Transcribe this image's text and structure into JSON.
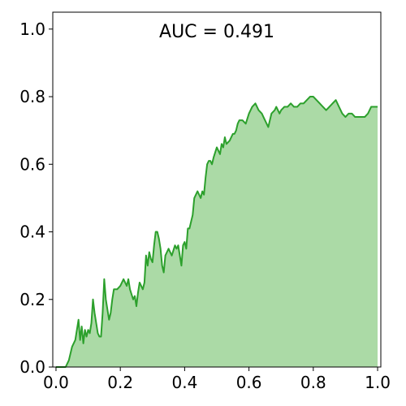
{
  "chart_data": {
    "type": "area",
    "title": "",
    "xlabel": "",
    "ylabel": "",
    "xlim": [
      -0.01,
      1.01
    ],
    "ylim": [
      0.0,
      1.05
    ],
    "grid": false,
    "line_color": "#2ca02c",
    "fill_color": "#abdaa6",
    "annotation": "AUC = 0.491",
    "x_ticks": [
      0.0,
      0.2,
      0.4,
      0.6,
      0.8,
      1.0
    ],
    "x_tick_labels": [
      "0.0",
      "0.2",
      "0.4",
      "0.6",
      "0.8",
      "1.0"
    ],
    "y_ticks": [
      0.0,
      0.2,
      0.4,
      0.6,
      0.8,
      1.0
    ],
    "y_tick_labels": [
      "0.0",
      "0.2",
      "0.4",
      "0.6",
      "0.8",
      "1.0"
    ],
    "x": [
      0.0,
      0.03,
      0.04,
      0.05,
      0.06,
      0.07,
      0.075,
      0.08,
      0.085,
      0.09,
      0.095,
      0.1,
      0.105,
      0.11,
      0.115,
      0.12,
      0.125,
      0.13,
      0.135,
      0.14,
      0.145,
      0.15,
      0.155,
      0.16,
      0.165,
      0.17,
      0.175,
      0.18,
      0.19,
      0.2,
      0.21,
      0.215,
      0.22,
      0.225,
      0.23,
      0.24,
      0.245,
      0.25,
      0.255,
      0.26,
      0.27,
      0.275,
      0.28,
      0.285,
      0.29,
      0.295,
      0.3,
      0.305,
      0.31,
      0.315,
      0.32,
      0.325,
      0.33,
      0.335,
      0.34,
      0.345,
      0.35,
      0.36,
      0.37,
      0.375,
      0.38,
      0.385,
      0.39,
      0.395,
      0.4,
      0.405,
      0.41,
      0.415,
      0.42,
      0.425,
      0.43,
      0.44,
      0.45,
      0.455,
      0.46,
      0.465,
      0.47,
      0.475,
      0.48,
      0.485,
      0.49,
      0.5,
      0.505,
      0.51,
      0.515,
      0.52,
      0.525,
      0.53,
      0.54,
      0.545,
      0.55,
      0.555,
      0.56,
      0.565,
      0.57,
      0.58,
      0.59,
      0.6,
      0.61,
      0.62,
      0.63,
      0.64,
      0.645,
      0.65,
      0.66,
      0.67,
      0.68,
      0.685,
      0.69,
      0.695,
      0.7,
      0.71,
      0.72,
      0.73,
      0.74,
      0.75,
      0.76,
      0.77,
      0.78,
      0.79,
      0.8,
      0.81,
      0.82,
      0.83,
      0.84,
      0.85,
      0.86,
      0.87,
      0.88,
      0.89,
      0.9,
      0.91,
      0.92,
      0.93,
      0.94,
      0.95,
      0.96,
      0.97,
      0.98,
      0.99,
      1.0
    ],
    "y": [
      0.0,
      0.0,
      0.02,
      0.06,
      0.08,
      0.14,
      0.08,
      0.12,
      0.07,
      0.11,
      0.09,
      0.11,
      0.1,
      0.13,
      0.2,
      0.16,
      0.13,
      0.1,
      0.09,
      0.09,
      0.16,
      0.26,
      0.2,
      0.17,
      0.14,
      0.16,
      0.2,
      0.23,
      0.23,
      0.24,
      0.26,
      0.25,
      0.24,
      0.26,
      0.23,
      0.2,
      0.21,
      0.18,
      0.22,
      0.25,
      0.23,
      0.25,
      0.33,
      0.3,
      0.34,
      0.32,
      0.31,
      0.36,
      0.4,
      0.4,
      0.38,
      0.35,
      0.3,
      0.28,
      0.33,
      0.34,
      0.35,
      0.33,
      0.36,
      0.35,
      0.36,
      0.33,
      0.3,
      0.36,
      0.37,
      0.35,
      0.41,
      0.41,
      0.43,
      0.45,
      0.5,
      0.52,
      0.5,
      0.52,
      0.51,
      0.56,
      0.6,
      0.61,
      0.61,
      0.6,
      0.62,
      0.65,
      0.64,
      0.63,
      0.66,
      0.65,
      0.68,
      0.66,
      0.67,
      0.68,
      0.69,
      0.69,
      0.7,
      0.72,
      0.73,
      0.73,
      0.72,
      0.75,
      0.77,
      0.78,
      0.76,
      0.75,
      0.74,
      0.73,
      0.71,
      0.75,
      0.76,
      0.77,
      0.76,
      0.75,
      0.76,
      0.77,
      0.77,
      0.78,
      0.77,
      0.77,
      0.78,
      0.78,
      0.79,
      0.8,
      0.8,
      0.79,
      0.78,
      0.77,
      0.76,
      0.77,
      0.78,
      0.79,
      0.77,
      0.75,
      0.74,
      0.75,
      0.75,
      0.74,
      0.74,
      0.74,
      0.74,
      0.75,
      0.77,
      0.77,
      0.77
    ]
  }
}
